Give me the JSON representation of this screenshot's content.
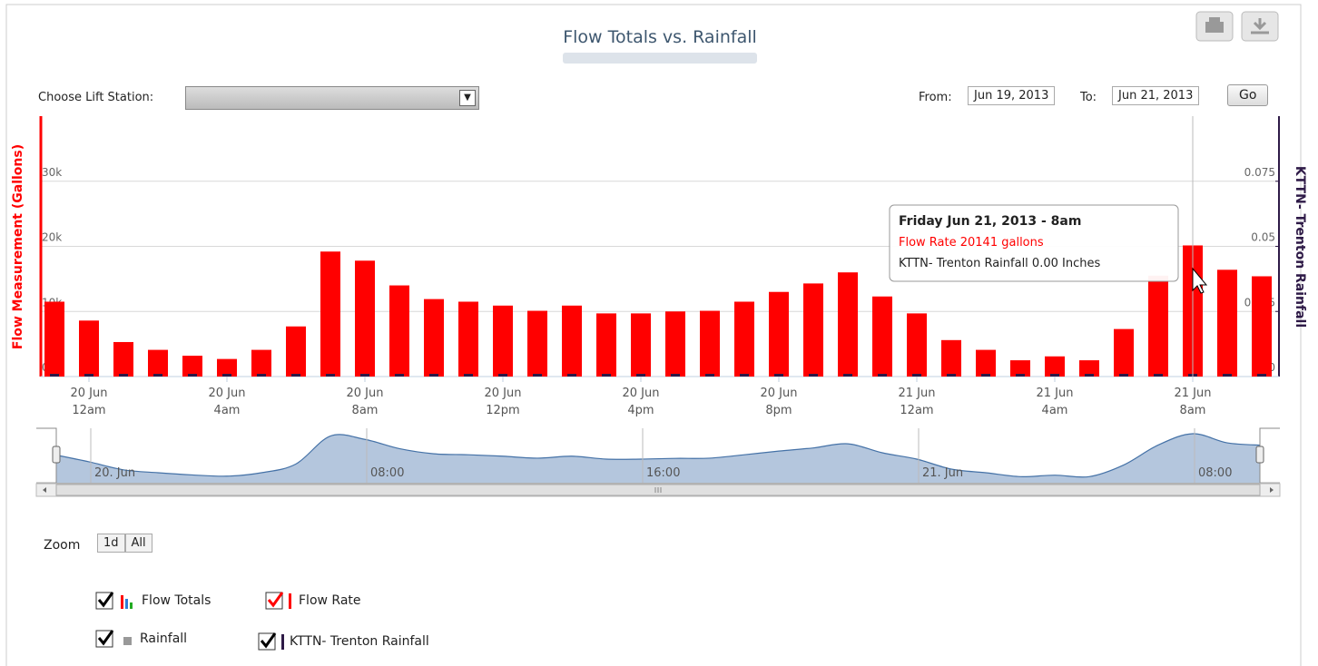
{
  "header": {
    "title": "Flow Totals vs. Rainfall",
    "lift_station_label": "Choose Lift Station:",
    "from_label": "From:",
    "from_date": "Jun 19, 2013",
    "to_label": "To:",
    "to_date": "Jun 21, 2013",
    "go": "Go"
  },
  "chart_data": {
    "type": "bar",
    "y_label": "Flow Measurement (Gallons)",
    "y2_label": "KTTN- Trenton Rainfall",
    "categories": [
      null,
      {
        "date": "20 Jun",
        "time": "12am"
      },
      null,
      null,
      null,
      {
        "date": "20 Jun",
        "time": "4am"
      },
      null,
      null,
      null,
      {
        "date": "20 Jun",
        "time": "8am"
      },
      null,
      null,
      null,
      {
        "date": "20 Jun",
        "time": "12pm"
      },
      null,
      null,
      null,
      {
        "date": "20 Jun",
        "time": "4pm"
      },
      null,
      null,
      null,
      {
        "date": "20 Jun",
        "time": "8pm"
      },
      null,
      null,
      null,
      {
        "date": "21 Jun",
        "time": "12am"
      },
      null,
      null,
      null,
      {
        "date": "21 Jun",
        "time": "4am"
      },
      null,
      null,
      null,
      {
        "date": "21 Jun",
        "time": "8am"
      },
      null,
      null
    ],
    "series": [
      {
        "name": "Flow Rate",
        "color": "#ff0000",
        "values": [
          11500,
          8600,
          5300,
          4100,
          3200,
          2700,
          4100,
          7700,
          19200,
          17800,
          14000,
          11900,
          11500,
          10900,
          10100,
          10900,
          9700,
          9700,
          10000,
          10100,
          11500,
          13000,
          14300,
          16000,
          12300,
          9700,
          5600,
          4100,
          2500,
          3100,
          2500,
          7300,
          15500,
          20141,
          16400,
          15400
        ]
      },
      {
        "name": "KTTN- Trenton Rainfall",
        "color": "#2e1a47",
        "axis": "y2",
        "values": [
          0,
          0,
          0,
          0,
          0,
          0,
          0,
          0,
          0,
          0,
          0,
          0,
          0,
          0,
          0,
          0,
          0,
          0,
          0,
          0,
          0,
          0,
          0,
          0,
          0,
          0,
          0,
          0,
          0,
          0,
          0,
          0,
          0,
          0,
          0,
          0
        ]
      }
    ],
    "ylim": [
      0,
      40000
    ],
    "yticks": [
      {
        "value": 0,
        "label": "0k"
      },
      {
        "value": 10000,
        "label": "10k"
      },
      {
        "value": 20000,
        "label": "20k"
      },
      {
        "value": 30000,
        "label": "30k"
      }
    ],
    "y2lim": [
      0,
      0.1
    ],
    "y2ticks": [
      0,
      0.025,
      0.05,
      0.075
    ],
    "grid": true,
    "tooltip": {
      "title": "Friday Jun 21, 2013 - 8am",
      "lines": [
        "Flow Rate 20141 gallons",
        "KTTN- Trenton Rainfall 0.00 Inches"
      ]
    },
    "navigator_labels": [
      "20. Jun",
      "08:00",
      "16:00",
      "21. Jun",
      "08:00"
    ],
    "legend_groups": [
      "Flow Totals",
      "Rainfall"
    ]
  },
  "zoom": {
    "label": "Zoom",
    "buttons": [
      "1d",
      "All"
    ]
  }
}
